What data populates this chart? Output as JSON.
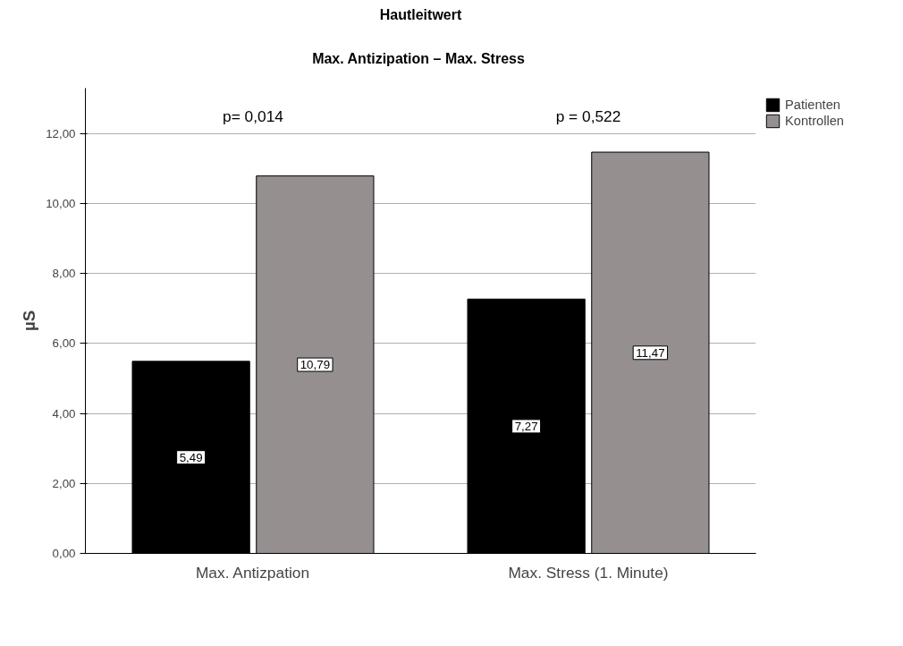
{
  "chart_data": {
    "type": "bar",
    "title": "Hautleitwert",
    "subtitle": "Max. Antizipation  – Max. Stress",
    "ylabel": "µS",
    "categories": [
      "Max. Antizpation",
      "Max. Stress (1. Minute)"
    ],
    "series": [
      {
        "name": "Patienten",
        "color": "#000000",
        "values": [
          5.49,
          7.27
        ],
        "value_labels": [
          "5,49",
          "7,27"
        ]
      },
      {
        "name": "Kontrollen",
        "color": "#958f8f",
        "values": [
          10.79,
          11.47
        ],
        "value_labels": [
          "10,79",
          "11,47"
        ]
      }
    ],
    "ylim": [
      0,
      13.3
    ],
    "yticks": [
      {
        "value": 0,
        "label": "0,00"
      },
      {
        "value": 2,
        "label": "2,00"
      },
      {
        "value": 4,
        "label": "4,00"
      },
      {
        "value": 6,
        "label": "6,00"
      },
      {
        "value": 8,
        "label": "8,00"
      },
      {
        "value": 10,
        "label": "10,00"
      },
      {
        "value": 12,
        "label": "12,00"
      }
    ],
    "annotations": [
      "p= 0,014",
      "p = 0,522"
    ],
    "grid": "y",
    "legend": "right"
  }
}
